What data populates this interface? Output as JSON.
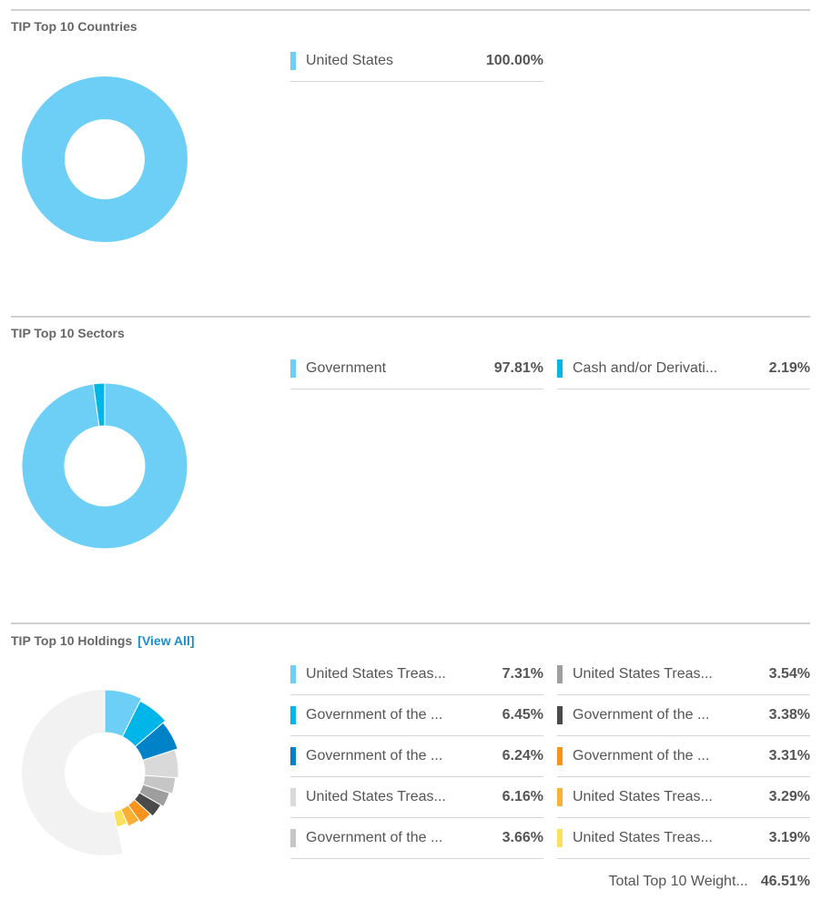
{
  "sections": [
    {
      "title": "TIP Top 10 Countries",
      "items": [
        {
          "label": "United States",
          "value": "100.00%",
          "color": "#6dcff6"
        }
      ]
    },
    {
      "title": "TIP Top 10 Sectors",
      "items": [
        {
          "label": "Government",
          "value": "97.81%",
          "color": "#6dcff6"
        },
        {
          "label": "Cash and/or Derivati...",
          "value": "2.19%",
          "color": "#00b5e8"
        }
      ]
    },
    {
      "title": "TIP Top 10 Holdings",
      "link": "[View All]",
      "items": [
        {
          "label": "United States Treas...",
          "value": "7.31%",
          "color": "#6dcff6"
        },
        {
          "label": "Government of the ...",
          "value": "6.45%",
          "color": "#00b5e8"
        },
        {
          "label": "Government of the ...",
          "value": "6.24%",
          "color": "#0082c8"
        },
        {
          "label": "United States Treas...",
          "value": "6.16%",
          "color": "#d9d9d9"
        },
        {
          "label": "Government of the ...",
          "value": "3.66%",
          "color": "#c6c6c6"
        },
        {
          "label": "United States Treas...",
          "value": "3.54%",
          "color": "#9e9e9e"
        },
        {
          "label": "Government of the ...",
          "value": "3.38%",
          "color": "#4a4a4a"
        },
        {
          "label": "Government of the ...",
          "value": "3.31%",
          "color": "#f7941d"
        },
        {
          "label": "United States Treas...",
          "value": "3.29%",
          "color": "#fbb034"
        },
        {
          "label": "United States Treas...",
          "value": "3.19%",
          "color": "#fde05c"
        }
      ],
      "total_label": "Total Top 10 Weight...",
      "total_value": "46.51%"
    }
  ],
  "chart_data": [
    {
      "type": "pie",
      "title": "TIP Top 10 Countries",
      "categories": [
        "United States"
      ],
      "values": [
        100.0
      ],
      "colors": [
        "#6dcff6"
      ]
    },
    {
      "type": "pie",
      "title": "TIP Top 10 Sectors",
      "categories": [
        "Government",
        "Cash and/or Derivati..."
      ],
      "values": [
        97.81,
        2.19
      ],
      "colors": [
        "#6dcff6",
        "#00b5e8"
      ]
    },
    {
      "type": "pie",
      "title": "TIP Top 10 Holdings",
      "categories": [
        "United States Treas...",
        "Government of the ...",
        "Government of the ...",
        "United States Treas...",
        "Government of the ...",
        "United States Treas...",
        "Government of the ...",
        "Government of the ...",
        "United States Treas...",
        "United States Treas..."
      ],
      "values": [
        7.31,
        6.45,
        6.24,
        6.16,
        3.66,
        3.54,
        3.38,
        3.31,
        3.29,
        3.19
      ],
      "colors": [
        "#6dcff6",
        "#00b5e8",
        "#0082c8",
        "#d9d9d9",
        "#c6c6c6",
        "#9e9e9e",
        "#4a4a4a",
        "#f7941d",
        "#fbb034",
        "#fde05c"
      ],
      "remainder_color": "#f2f2f2"
    }
  ]
}
